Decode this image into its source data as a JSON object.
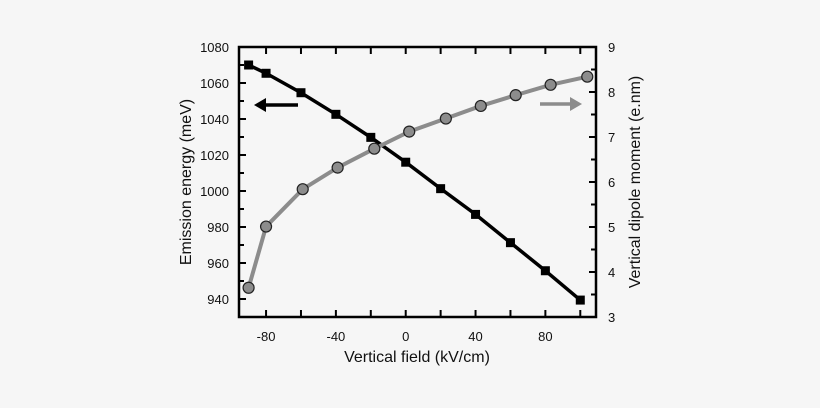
{
  "chart_data": {
    "type": "line",
    "xlabel": "Vertical field (kV/cm)",
    "ylabel_left": "Emission energy (meV)",
    "ylabel_right": "Vertical dipole moment (e.nm)",
    "xlim": [
      -95.5,
      109
    ],
    "ylim_left": [
      930,
      1080
    ],
    "ylim_right": [
      3,
      9
    ],
    "x_ticks": [
      -80,
      -40,
      0,
      40,
      80
    ],
    "y_left_ticks": [
      940,
      960,
      980,
      1000,
      1020,
      1040,
      1060,
      1080
    ],
    "y_right_ticks": [
      3,
      4,
      5,
      6,
      7,
      8,
      9
    ],
    "grid": false,
    "series": [
      {
        "axis": "left",
        "marker": "square",
        "color": "#000000",
        "x": [
          -90,
          -80,
          -60,
          -40,
          -20,
          0,
          20,
          40,
          60,
          80,
          100
        ],
        "y": [
          1070,
          1065.4,
          1054.6,
          1042.6,
          1029.8,
          1016,
          1001.3,
          987,
          971.3,
          955.7,
          939.4
        ]
      },
      {
        "axis": "right",
        "marker": "circle",
        "color": "#8c8c8c",
        "x": [
          -90,
          -80,
          -59,
          -39,
          -18,
          2,
          23,
          43,
          63,
          83,
          104
        ],
        "y": [
          3.65,
          5.01,
          5.84,
          6.32,
          6.74,
          7.12,
          7.41,
          7.69,
          7.93,
          8.16,
          8.34
        ]
      }
    ],
    "annotations": [
      {
        "type": "arrow",
        "direction": "left",
        "color": "#000000",
        "meaning": "left axis series"
      },
      {
        "type": "arrow",
        "direction": "right",
        "color": "#8c8c8c",
        "meaning": "right axis series"
      }
    ]
  }
}
